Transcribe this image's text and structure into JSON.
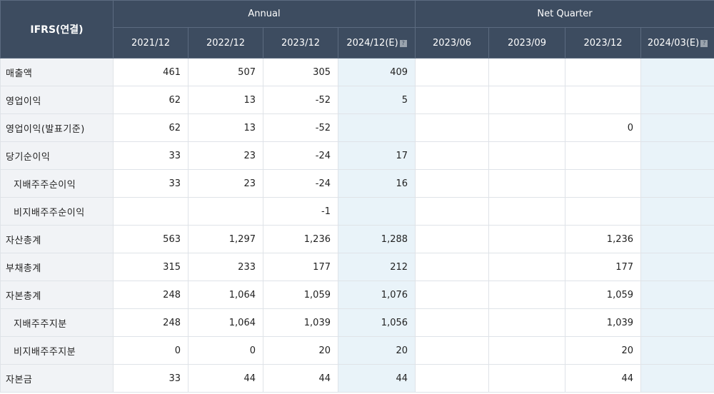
{
  "header": {
    "corner": "IFRS(연결)",
    "annual_label": "Annual",
    "quarter_label": "Net Quarter",
    "annual_periods": [
      "2021/12",
      "2022/12",
      "2023/12",
      "2024/12(E)"
    ],
    "quarter_periods": [
      "2023/06",
      "2023/09",
      "2023/12",
      "2024/03(E)"
    ]
  },
  "rows": [
    {
      "label": "매출액",
      "sub": false,
      "values": [
        "461",
        "507",
        "305",
        "409",
        "",
        "",
        "",
        ""
      ]
    },
    {
      "label": "영업이익",
      "sub": false,
      "values": [
        "62",
        "13",
        "-52",
        "5",
        "",
        "",
        "",
        ""
      ]
    },
    {
      "label": "영업이익(발표기준)",
      "sub": false,
      "values": [
        "62",
        "13",
        "-52",
        "",
        "",
        "",
        "0",
        ""
      ]
    },
    {
      "label": "당기순이익",
      "sub": false,
      "values": [
        "33",
        "23",
        "-24",
        "17",
        "",
        "",
        "",
        ""
      ]
    },
    {
      "label": "지배주주순이익",
      "sub": true,
      "values": [
        "33",
        "23",
        "-24",
        "16",
        "",
        "",
        "",
        ""
      ]
    },
    {
      "label": "비지배주주순이익",
      "sub": true,
      "values": [
        "",
        "",
        "-1",
        "",
        "",
        "",
        "",
        ""
      ]
    },
    {
      "label": "자산총계",
      "sub": false,
      "values": [
        "563",
        "1,297",
        "1,236",
        "1,288",
        "",
        "",
        "1,236",
        ""
      ]
    },
    {
      "label": "부채총계",
      "sub": false,
      "values": [
        "315",
        "233",
        "177",
        "212",
        "",
        "",
        "177",
        ""
      ]
    },
    {
      "label": "자본총계",
      "sub": false,
      "values": [
        "248",
        "1,064",
        "1,059",
        "1,076",
        "",
        "",
        "1,059",
        ""
      ]
    },
    {
      "label": "지배주주지분",
      "sub": true,
      "values": [
        "248",
        "1,064",
        "1,039",
        "1,056",
        "",
        "",
        "1,039",
        ""
      ]
    },
    {
      "label": "비지배주주지분",
      "sub": true,
      "values": [
        "0",
        "0",
        "20",
        "20",
        "",
        "",
        "20",
        ""
      ]
    },
    {
      "label": "자본금",
      "sub": false,
      "values": [
        "33",
        "44",
        "44",
        "44",
        "",
        "",
        "44",
        ""
      ]
    }
  ]
}
